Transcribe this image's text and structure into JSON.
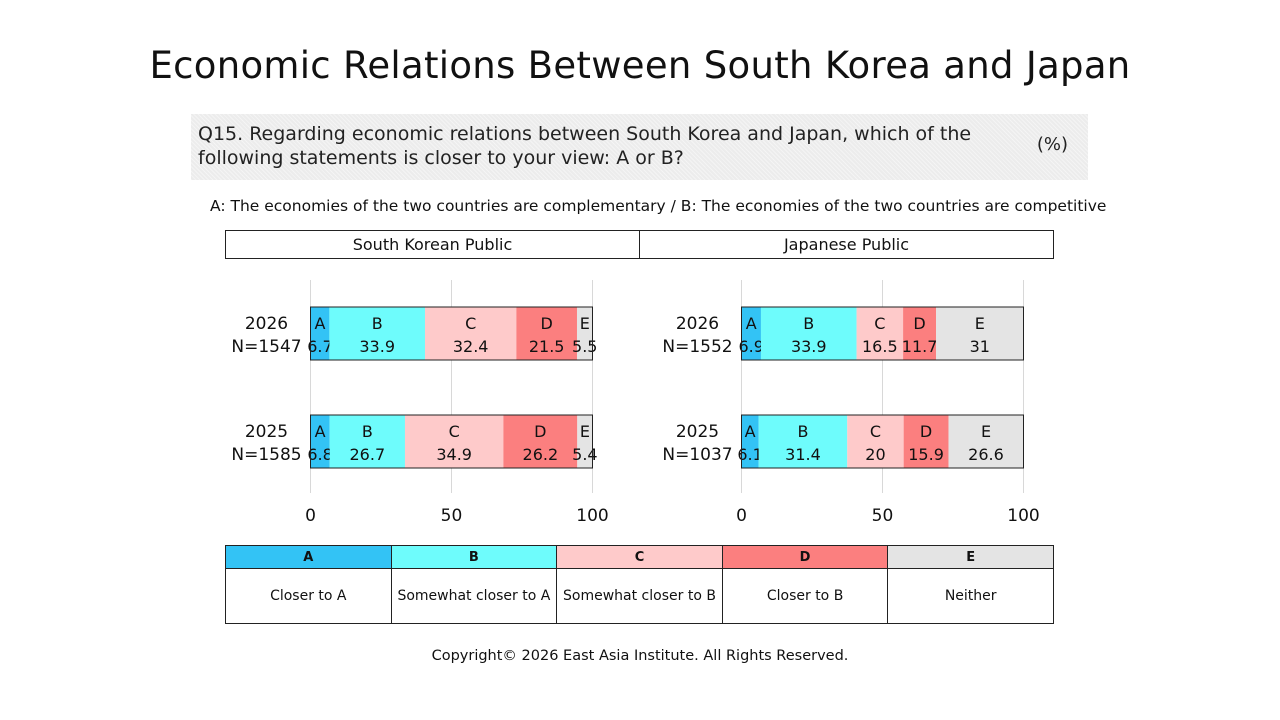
{
  "title": "Economic Relations Between South Korea and Japan",
  "question": "Q15. Regarding economic relations between South Korea and Japan, which of the following statements is closer to your view: A or B?",
  "unit": "(%)",
  "statement": "A: The economies of the two countries are complementary /  B: The economies of the two countries are competitive",
  "panels": {
    "korea": "South Korean Public",
    "japan": "Japanese Public"
  },
  "legend": [
    {
      "key": "A",
      "label": "Closer to A",
      "color": "#33c3f5"
    },
    {
      "key": "B",
      "label": "Somewhat closer to A",
      "color": "#6efcfc"
    },
    {
      "key": "C",
      "label": "Somewhat closer to B",
      "color": "#fecaca"
    },
    {
      "key": "D",
      "label": "Closer to B",
      "color": "#fb7f7f"
    },
    {
      "key": "E",
      "label": "Neither",
      "color": "#e4e4e4"
    }
  ],
  "footer": "Copyright© 2026 East Asia Institute. All Rights Reserved.",
  "chart_data": [
    {
      "type": "bar",
      "stacked": true,
      "orientation": "horizontal",
      "title": "South Korean Public",
      "categories": [
        "A",
        "B",
        "C",
        "D",
        "E"
      ],
      "xlim": [
        0,
        100
      ],
      "xticks": [
        0,
        50,
        100
      ],
      "rows": [
        {
          "year": "2026",
          "n": "N=1547",
          "values": [
            6.7,
            33.9,
            32.4,
            21.5,
            5.5
          ]
        },
        {
          "year": "2025",
          "n": "N=1585",
          "values": [
            6.8,
            26.7,
            34.9,
            26.2,
            5.4
          ]
        }
      ]
    },
    {
      "type": "bar",
      "stacked": true,
      "orientation": "horizontal",
      "title": "Japanese Public",
      "categories": [
        "A",
        "B",
        "C",
        "D",
        "E"
      ],
      "xlim": [
        0,
        100
      ],
      "xticks": [
        0,
        50,
        100
      ],
      "rows": [
        {
          "year": "2026",
          "n": "N=1552",
          "values": [
            6.9,
            33.9,
            16.5,
            11.7,
            31.0
          ]
        },
        {
          "year": "2025",
          "n": "N=1037",
          "values": [
            6.1,
            31.4,
            20,
            15.9,
            26.6
          ]
        }
      ]
    }
  ]
}
